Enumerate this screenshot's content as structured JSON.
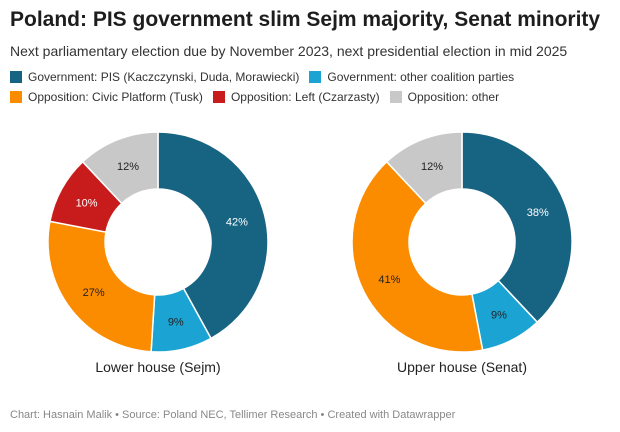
{
  "title": "Poland: PIS government slim Sejm majority, Senat minority",
  "subtitle": "Next parliamentary election due by November 2023, next presidential election in mid 2025",
  "legend": [
    {
      "label": "Government: PIS (Kaczczynski, Duda, Morawiecki)",
      "color": "#176482"
    },
    {
      "label": "Government: other coalition parties",
      "color": "#1ba4d3"
    },
    {
      "label": "Opposition: Civic Platform (Tusk)",
      "color": "#fb8c00"
    },
    {
      "label": "Opposition: Left (Czarzasty)",
      "color": "#c81c1c"
    },
    {
      "label": "Opposition: other",
      "color": "#c8c8c8"
    }
  ],
  "chart_data": [
    {
      "type": "pie",
      "title": "Lower house (Sejm)",
      "donut": true,
      "categories": [
        "Government: PIS (Kaczczynski, Duda, Morawiecki)",
        "Government: other coalition parties",
        "Opposition: Civic Platform (Tusk)",
        "Opposition: Left (Czarzasty)",
        "Opposition: other"
      ],
      "values": [
        42,
        9,
        27,
        10,
        12
      ],
      "labels": [
        "42%",
        "9%",
        "27%",
        "10%",
        "12%"
      ],
      "colors": [
        "#176482",
        "#1ba4d3",
        "#fb8c00",
        "#c81c1c",
        "#c8c8c8"
      ]
    },
    {
      "type": "pie",
      "title": "Upper house (Senat)",
      "donut": true,
      "categories": [
        "Government: PIS (Kaczczynski, Duda, Morawiecki)",
        "Government: other coalition parties",
        "Opposition: Civic Platform (Tusk)",
        "Opposition: other"
      ],
      "values": [
        38,
        9,
        41,
        12
      ],
      "labels": [
        "38%",
        "9%",
        "41%",
        "12%"
      ],
      "colors": [
        "#176482",
        "#1ba4d3",
        "#fb8c00",
        "#c8c8c8"
      ]
    }
  ],
  "footer": "Chart: Hasnain Malik • Source: Poland NEC, Tellimer Research • Created with Datawrapper"
}
